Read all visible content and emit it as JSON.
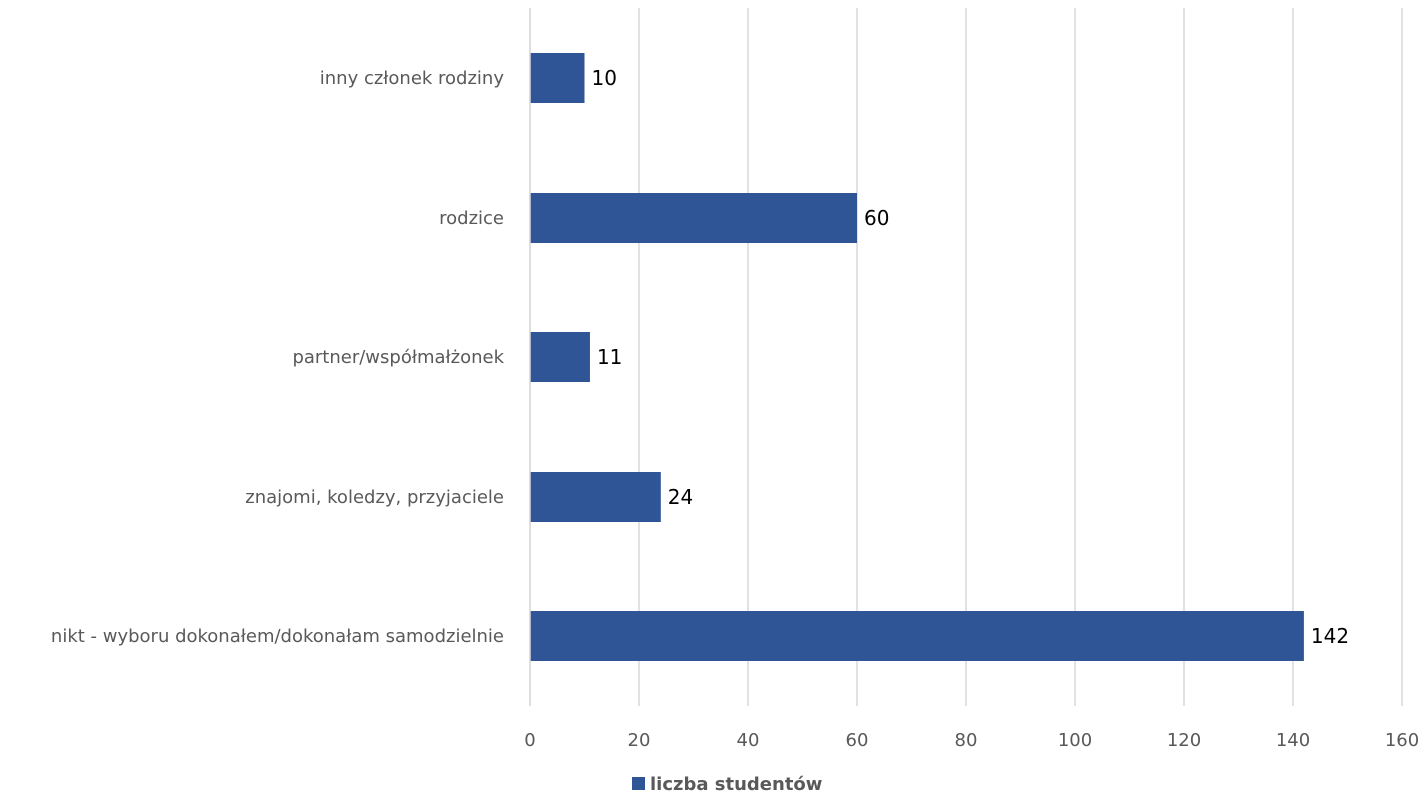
{
  "chart_data": {
    "type": "bar",
    "orientation": "horizontal",
    "categories": [
      "inny członek rodziny",
      "rodzice",
      "partner/współmałżonek",
      "znajomi, koledzy, przyjaciele",
      "nikt - wyboru dokonałem/dokonałam samodzielnie"
    ],
    "series": [
      {
        "name": "liczba studentów",
        "values": [
          10,
          60,
          11,
          24,
          142
        ],
        "color": "#2F5597"
      }
    ],
    "xlim": [
      0,
      160
    ],
    "x_ticks": [
      "0",
      "20",
      "40",
      "60",
      "80",
      "100",
      "120",
      "140",
      "160"
    ],
    "data_labels": [
      "10",
      "60",
      "11",
      "24",
      "142"
    ],
    "grid": true,
    "legend_position": "bottom",
    "title": "",
    "xlabel": "",
    "ylabel": ""
  }
}
